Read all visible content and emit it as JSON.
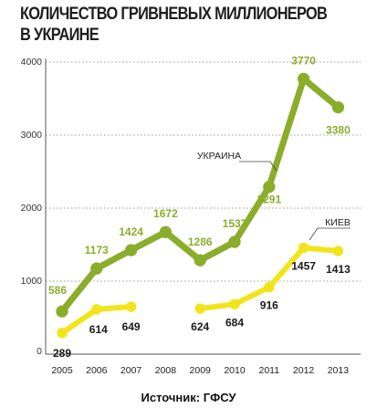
{
  "title_lines": [
    "КОЛИЧЕСТВО ГРИВНЕВЫХ МИЛЛИОНЕРОВ",
    "В УКРАИНЕ"
  ],
  "source": "Источник: ГФСУ",
  "colors": {
    "green": "#8aad2a",
    "yellow": "#f2e41a",
    "axis": "#555555",
    "grid": "#9a9a9a",
    "label_dark": "#1a1a1a"
  },
  "chart_data": {
    "type": "line",
    "categories": [
      "2005",
      "2006",
      "2007",
      "2008",
      "2009",
      "2010",
      "2011",
      "2012",
      "2013"
    ],
    "ylim": [
      0,
      4000
    ],
    "yticks": [
      "0",
      "1000",
      "2000",
      "3000",
      "4000"
    ],
    "grid": true,
    "series": [
      {
        "name": "УКРАИНА",
        "color": "#8aad2a",
        "values": [
          586,
          1173,
          1424,
          1672,
          1286,
          1537,
          2291,
          3770,
          3380
        ],
        "labels": [
          "586",
          "1173",
          "1424",
          "1672",
          "1286",
          "1537",
          "2291",
          "3770",
          "3380"
        ]
      },
      {
        "name": "КИЕВ",
        "color": "#f2e41a",
        "values": [
          289,
          614,
          649,
          null,
          624,
          684,
          916,
          1457,
          1413
        ],
        "labels": [
          "289",
          "614",
          "649",
          "",
          "624",
          "684",
          "916",
          "1457",
          "1413"
        ]
      }
    ]
  }
}
